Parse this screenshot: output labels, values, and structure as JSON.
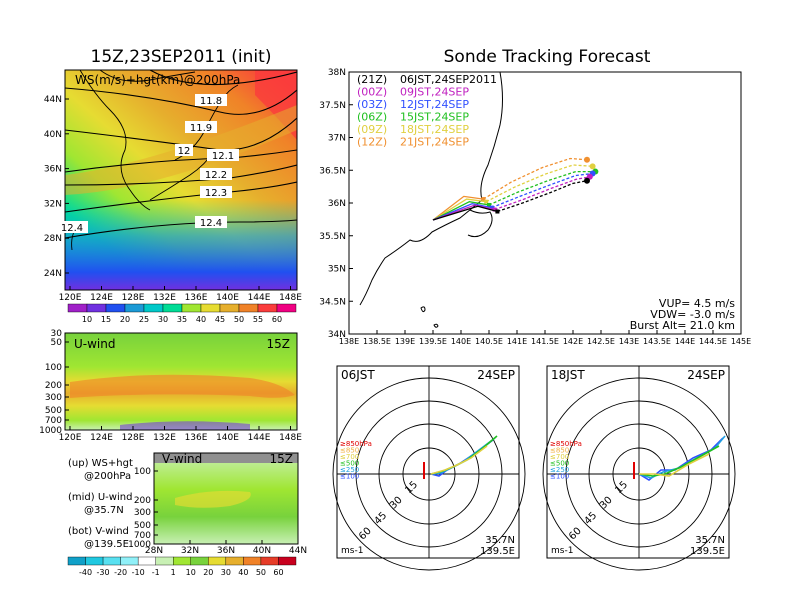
{
  "left_title": "15Z,23SEP2011 (init)",
  "right_title": "Sonde Tracking Forecast",
  "colors": {
    "ws_scale": [
      "#a020c8",
      "#7030e0",
      "#2050f0",
      "#1b9ad6",
      "#00c8c8",
      "#00dc96",
      "#a0e632",
      "#e6dc32",
      "#e6af2d",
      "#f08228",
      "#fa3c3c",
      "#f00082"
    ],
    "wind_scale": [
      "#10a0c8",
      "#20c8e0",
      "#58e0f0",
      "#90f0f8",
      "#ffffff",
      "#c8f0b4",
      "#a0e632",
      "#78d23c",
      "#e6dc32",
      "#e6af2d",
      "#f08228",
      "#e63c28",
      "#c8001e"
    ],
    "t21": "#000000",
    "t00": "#c020c0",
    "t03": "#3050ff",
    "t06": "#20c020",
    "t09": "#e0d040",
    "t12": "#f09030"
  },
  "ws_panel": {
    "label": "WS(m/s)+hgt(km)@200hPa",
    "lon_ticks": [
      "120E",
      "124E",
      "128E",
      "132E",
      "136E",
      "140E",
      "144E",
      "148E"
    ],
    "lat_ticks": [
      "44N",
      "40N",
      "36N",
      "32N",
      "28N",
      "24N"
    ],
    "contour_labels": [
      "11.8",
      "11.9",
      "12",
      "12.1",
      "12.2",
      "12.3",
      "12.4",
      "12.4"
    ],
    "colorbar_labels": [
      "10",
      "15",
      "20",
      "25",
      "30",
      "35",
      "40",
      "45",
      "50",
      "55",
      "60"
    ]
  },
  "u_panel": {
    "label": "U-wind",
    "time": "15Z",
    "p_ticks": [
      "30",
      "50",
      "100",
      "200",
      "300",
      "500",
      "700",
      "1000"
    ],
    "lon_ticks": [
      "120E",
      "124E",
      "128E",
      "132E",
      "136E",
      "140E",
      "144E",
      "148E"
    ]
  },
  "v_panel": {
    "label": "V-wind",
    "time": "15Z",
    "p_ticks": [
      "100",
      "200",
      "300",
      "500",
      "700",
      "1000"
    ],
    "lat_ticks": [
      "28N",
      "32N",
      "36N",
      "40N",
      "44N"
    ]
  },
  "notes": {
    "up1": "(up) WS+hgt",
    "up2": "@200hPa",
    "mid1": "(mid) U-wind",
    "mid2": "@35.7N",
    "bot1": "(bot) V-wind",
    "bot2": "@139.5E"
  },
  "wind_colorbar_labels": [
    "-40",
    "-30",
    "-20",
    "-10",
    "-1",
    "1",
    "10",
    "20",
    "30",
    "40",
    "50",
    "60"
  ],
  "track_map": {
    "lat_ticks": [
      "38N",
      "37.5N",
      "37N",
      "36.5N",
      "36N",
      "35.5N",
      "35N",
      "34.5N",
      "34N"
    ],
    "lon_ticks": [
      "138E",
      "138.5E",
      "139E",
      "139.5E",
      "140E",
      "140.5E",
      "141E",
      "141.5E",
      "142E",
      "142.5E",
      "143E",
      "143.5E",
      "144E",
      "144.5E",
      "145E"
    ],
    "legend": [
      {
        "code": "(21Z)",
        "time": "06JST,24SEP2011"
      },
      {
        "code": "(00Z)",
        "time": "09JST,24SEP"
      },
      {
        "code": "(03Z)",
        "time": "12JST,24SEP"
      },
      {
        "code": "(06Z)",
        "time": "15JST,24SEP"
      },
      {
        "code": "(09Z)",
        "time": "18JST,24SEP"
      },
      {
        "code": "(12Z)",
        "time": "21JST,24SEP"
      }
    ],
    "vup": "VUP= 4.5 m/s",
    "vdw": "VDW= -3.0 m/s",
    "burst": "Burst Alt= 21.0 km"
  },
  "chart_data": [
    {
      "type": "line",
      "title": "Sonde Tracking Forecast",
      "xlabel": "",
      "ylabel": "",
      "xlim": [
        138,
        145
      ],
      "ylim": [
        34,
        38
      ],
      "series": [
        {
          "name": "(21Z) 06JST,24SEP2011",
          "x": [
            139.5,
            140.3,
            140.65,
            141.1,
            141.6,
            142.0,
            142.25
          ],
          "y": [
            35.74,
            35.95,
            35.87,
            36.0,
            36.16,
            36.3,
            36.34
          ]
        },
        {
          "name": "(00Z) 09JST,24SEP",
          "x": [
            139.5,
            140.25,
            140.6,
            141.1,
            141.6,
            142.05,
            142.3
          ],
          "y": [
            35.74,
            35.97,
            35.9,
            36.05,
            36.22,
            36.36,
            36.4
          ]
        },
        {
          "name": "(03Z) 12JST,24SEP",
          "x": [
            139.5,
            140.2,
            140.55,
            141.05,
            141.6,
            142.05,
            142.35
          ],
          "y": [
            35.74,
            35.99,
            35.93,
            36.1,
            36.28,
            36.42,
            36.45
          ]
        },
        {
          "name": "(06Z) 15JST,24SEP",
          "x": [
            139.5,
            140.15,
            140.5,
            141.0,
            141.55,
            142.05,
            142.4
          ],
          "y": [
            35.74,
            36.02,
            35.97,
            36.16,
            36.34,
            36.48,
            36.48
          ]
        },
        {
          "name": "(09Z) 18JST,24SEP",
          "x": [
            139.5,
            140.1,
            140.45,
            140.95,
            141.5,
            142.0,
            142.35
          ],
          "y": [
            35.74,
            36.06,
            36.02,
            36.24,
            36.44,
            36.58,
            36.56
          ]
        },
        {
          "name": "(12Z) 21JST,24SEP",
          "x": [
            139.5,
            140.05,
            140.4,
            140.9,
            141.45,
            141.95,
            142.25
          ],
          "y": [
            35.74,
            36.1,
            36.06,
            36.32,
            36.54,
            36.68,
            36.66
          ]
        }
      ]
    }
  ],
  "polar_left": {
    "time": "06JST",
    "date": "24SEP",
    "ring_labels": [
      "15",
      "30",
      "45",
      "60"
    ],
    "levels": [
      "≥850hPa",
      "≤850",
      "≤700",
      "≤500",
      "≤250",
      "≤100"
    ],
    "pos1": "35.7N",
    "pos2": "139.5E",
    "unit": "ms-1"
  },
  "polar_right": {
    "time": "18JST",
    "date": "24SEP",
    "ring_labels": [
      "15",
      "30",
      "45",
      "60"
    ],
    "levels": [
      "≥850hPa",
      "≤850",
      "≤700",
      "≤500",
      "≤250",
      "≤100"
    ],
    "pos1": "35.7N",
    "pos2": "139.5E",
    "unit": "ms-1"
  }
}
